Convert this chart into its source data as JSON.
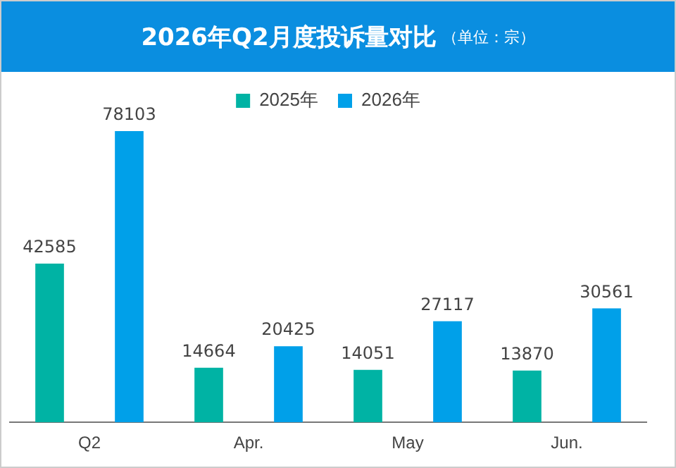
{
  "chart_data": {
    "type": "bar",
    "title": "2026年Q2月度投诉量对比",
    "subtitle": "（单位：宗）",
    "categories": [
      "Q2",
      "Apr.",
      "May",
      "Jun."
    ],
    "series": [
      {
        "name": "2025年",
        "color": "#00b3a4",
        "values": [
          42585,
          14664,
          14051,
          13870
        ]
      },
      {
        "name": "2026年",
        "color": "#00a0e9",
        "values": [
          78103,
          20425,
          27117,
          30561
        ]
      }
    ],
    "data_labels": true,
    "grid": false,
    "legend": "top"
  }
}
